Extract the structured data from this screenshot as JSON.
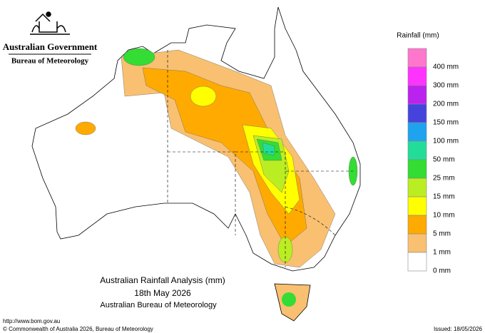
{
  "header": {
    "government": "Australian Government",
    "bureau": "Bureau of Meteorology"
  },
  "legend": {
    "title": "Rainfall (mm)",
    "swatches": [
      "#ff77cc",
      "#ff33ff",
      "#bb22ee",
      "#4444dd",
      "#1ea3ef",
      "#22dd99",
      "#33dd33",
      "#bbee22",
      "#ffff00",
      "#ffaa00",
      "#f8c070",
      "#ffffff"
    ],
    "labels": [
      "400 mm",
      "300 mm",
      "200 mm",
      "150 mm",
      "100 mm",
      "50 mm",
      "25 mm",
      "15 mm",
      "10 mm",
      "5 mm",
      "1 mm",
      "0 mm"
    ]
  },
  "map_title": {
    "line1": "Australian Rainfall Analysis (mm)",
    "line2": "18th May 2026",
    "line3": "Australian Bureau of Meteorology"
  },
  "footer": {
    "url": "http://www.bom.gov.au",
    "copyright": "© Commonwealth of Australia 2026, Bureau of Meteorology",
    "issued": "Issued: 18/05/2026"
  }
}
